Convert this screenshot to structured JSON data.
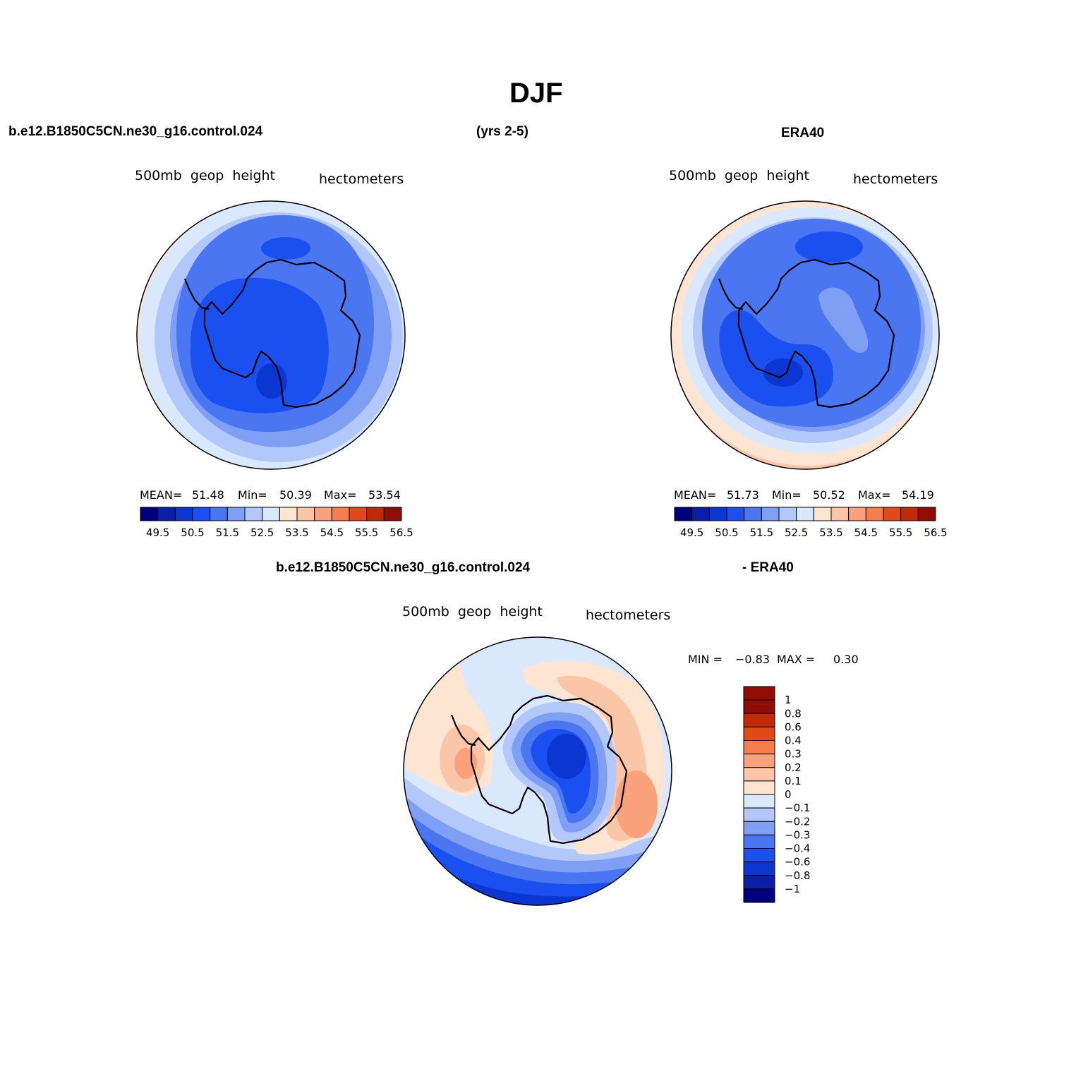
{
  "title": "DJF",
  "header": {
    "left": "b.e12.B1850C5CN.ne30_g16.control.024",
    "center": "(yrs 2-5)",
    "right": "ERA40"
  },
  "panels": {
    "model": {
      "name": "500mb  geop  height",
      "units": "hectometers",
      "stats": {
        "mean_label": "MEAN=",
        "mean": "51.48",
        "min_label": "Min=",
        "min": "50.39",
        "max_label": "Max=",
        "max": "53.54"
      }
    },
    "obs": {
      "name": "500mb  geop  height",
      "units": "hectometers",
      "stats": {
        "mean_label": "MEAN=",
        "mean": "51.73",
        "min_label": "Min=",
        "min": "50.52",
        "max_label": "Max=",
        "max": "54.19"
      }
    },
    "diff": {
      "title_left": "b.e12.B1850C5CN.ne30_g16.control.024",
      "title_right": "- ERA40",
      "name": "500mb  geop  height",
      "units": "hectometers",
      "stats": {
        "min_label": "MIN =",
        "min": "−0.83",
        "max_label": "MAX =",
        "max": "0.30"
      }
    }
  },
  "colors": {
    "field_levels": [
      "#00007f",
      "#0a1fa8",
      "#0c36d2",
      "#1a4ff0",
      "#4a76f2",
      "#7f9ff5",
      "#b3c8fa",
      "#d9e8fc",
      "#fde5d2",
      "#fbc6a8",
      "#f9a27c",
      "#f77e4c",
      "#e34a1a",
      "#bf2b08",
      "#8f0d02"
    ],
    "diff_levels": [
      "#00007f",
      "#0a1fa8",
      "#0c36d2",
      "#1a4ff0",
      "#4a76f2",
      "#7f9ff5",
      "#b3c8fa",
      "#d9e8fc",
      "#fde5d2",
      "#fbc6a8",
      "#f9a27c",
      "#f77e4c",
      "#e34a1a",
      "#bf2b08",
      "#8f0d02"
    ]
  },
  "chart_data": [
    {
      "type": "heatmap",
      "title": "500mb  geop  height",
      "units": "hectometers",
      "projection": "south polar stereographic",
      "colorbar_ticks": [
        "49.5",
        "50.5",
        "51.5",
        "52.5",
        "53.5",
        "54.5",
        "55.5",
        "56.5"
      ],
      "mean": 51.48,
      "min": 50.39,
      "max": 53.54
    },
    {
      "type": "heatmap",
      "title": "500mb  geop  height",
      "units": "hectometers",
      "projection": "south polar stereographic",
      "colorbar_ticks": [
        "49.5",
        "50.5",
        "51.5",
        "52.5",
        "53.5",
        "54.5",
        "55.5",
        "56.5"
      ],
      "mean": 51.73,
      "min": 50.52,
      "max": 54.19
    },
    {
      "type": "heatmap",
      "title": "500mb  geop  height",
      "units": "hectometers",
      "projection": "south polar stereographic",
      "colorbar_ticks": [
        "1",
        "0.8",
        "0.6",
        "0.4",
        "0.3",
        "0.2",
        "0.1",
        "0",
        "−0.1",
        "−0.2",
        "−0.3",
        "−0.4",
        "−0.6",
        "−0.8",
        "−1"
      ],
      "min": -0.83,
      "max": 0.3
    }
  ]
}
